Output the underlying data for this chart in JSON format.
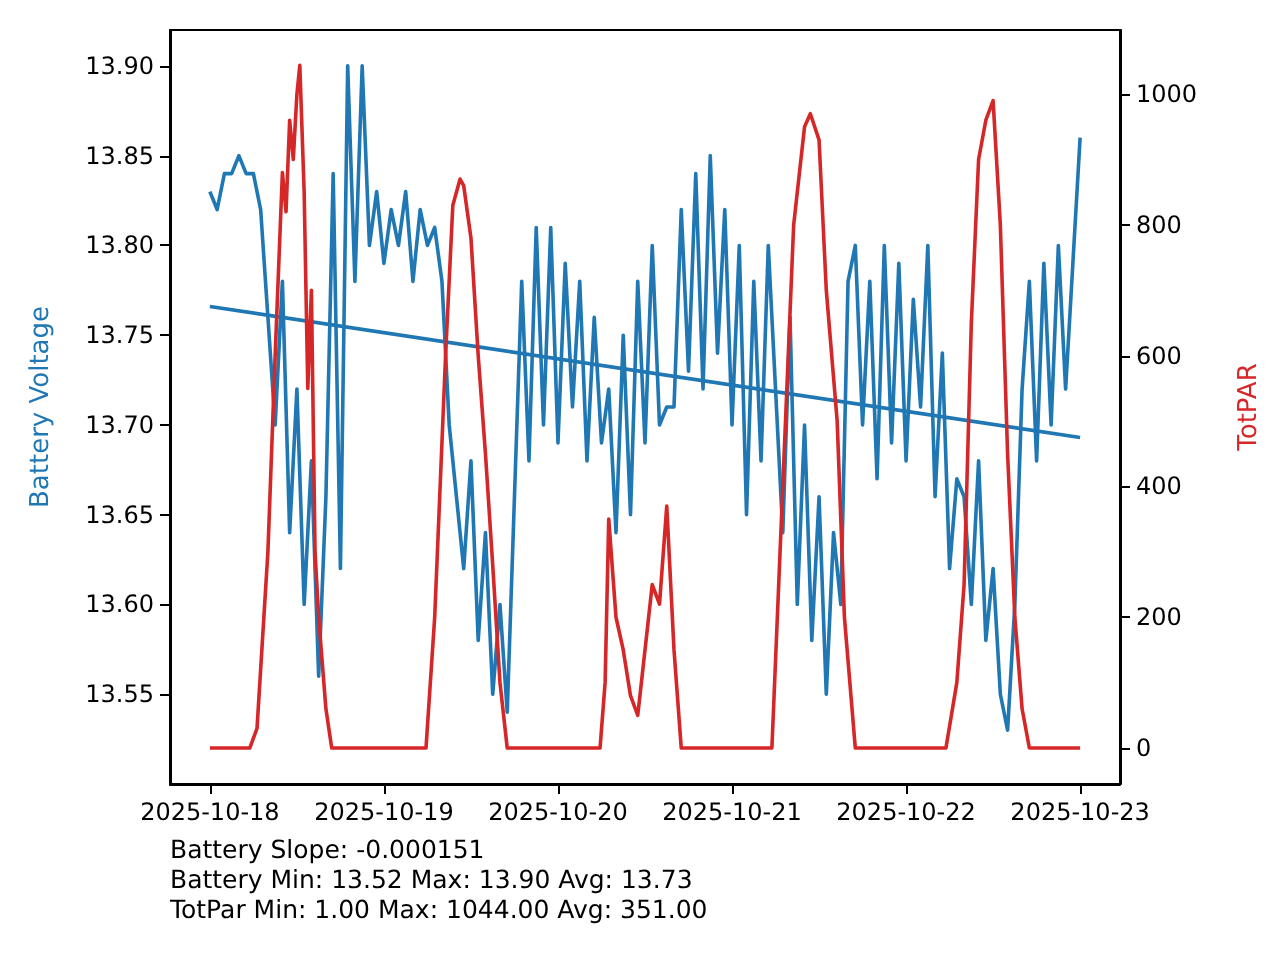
{
  "chart_data": {
    "type": "line",
    "ylabel": "Battery Voltage",
    "y2label": "TotPAR",
    "xlim": [
      "2025-10-17T18:30",
      "2025-10-23T05:30"
    ],
    "xticks": [
      "2025-10-18",
      "2025-10-19",
      "2025-10-20",
      "2025-10-21",
      "2025-10-22",
      "2025-10-23"
    ],
    "ylim": [
      13.5,
      13.92
    ],
    "yticks": [
      13.55,
      {
        "value": 13.6,
        "label": "13.60"
      },
      13.65,
      {
        "value": 13.7,
        "label": "13.70"
      },
      13.75,
      {
        "value": 13.8,
        "label": "13.80"
      },
      13.85,
      {
        "value": 13.9,
        "label": "13.90"
      }
    ],
    "y2lim": [
      -55,
      1098
    ],
    "y2ticks": [
      0,
      200,
      400,
      600,
      800,
      1000
    ],
    "grid": false,
    "marker": "none",
    "line_style": "solid",
    "annotations": [
      "Battery Slope: -0.000151",
      "Battery Min: 13.52 Max: 13.90 Avg: 13.73",
      "TotPar Min: 1.00 Max: 1044.00 Avg: 351.00"
    ],
    "series": [
      {
        "color": "#1f77b4",
        "x": [
          "2025-10-18T00:00",
          "2025-10-18T01:00",
          "2025-10-18T02:00",
          "2025-10-18T03:00",
          "2025-10-18T04:00",
          "2025-10-18T05:00",
          "2025-10-18T06:00",
          "2025-10-18T07:00",
          "2025-10-18T08:00",
          "2025-10-18T09:00",
          "2025-10-18T10:00",
          "2025-10-18T11:00",
          "2025-10-18T12:00",
          "2025-10-18T13:00",
          "2025-10-18T14:00",
          "2025-10-18T15:00",
          "2025-10-18T16:00",
          "2025-10-18T17:00",
          "2025-10-18T18:00",
          "2025-10-18T19:00",
          "2025-10-18T20:00",
          "2025-10-18T21:00",
          "2025-10-18T22:00",
          "2025-10-18T23:00",
          "2025-10-19T00:00",
          "2025-10-19T01:00",
          "2025-10-19T02:00",
          "2025-10-19T03:00",
          "2025-10-19T04:00",
          "2025-10-19T05:00",
          "2025-10-19T06:00",
          "2025-10-19T07:00",
          "2025-10-19T08:00",
          "2025-10-19T09:00",
          "2025-10-19T10:00",
          "2025-10-19T11:00",
          "2025-10-19T12:00",
          "2025-10-19T13:00",
          "2025-10-19T14:00",
          "2025-10-19T15:00",
          "2025-10-19T16:00",
          "2025-10-19T17:00",
          "2025-10-19T18:00",
          "2025-10-19T19:00",
          "2025-10-19T20:00",
          "2025-10-19T21:00",
          "2025-10-19T22:00",
          "2025-10-19T23:00",
          "2025-10-20T00:00",
          "2025-10-20T01:00",
          "2025-10-20T02:00",
          "2025-10-20T03:00",
          "2025-10-20T04:00",
          "2025-10-20T05:00",
          "2025-10-20T06:00",
          "2025-10-20T07:00",
          "2025-10-20T08:00",
          "2025-10-20T09:00",
          "2025-10-20T10:00",
          "2025-10-20T11:00",
          "2025-10-20T12:00",
          "2025-10-20T13:00",
          "2025-10-20T14:00",
          "2025-10-20T15:00",
          "2025-10-20T16:00",
          "2025-10-20T17:00",
          "2025-10-20T18:00",
          "2025-10-20T19:00",
          "2025-10-20T20:00",
          "2025-10-20T21:00",
          "2025-10-20T22:00",
          "2025-10-20T23:00",
          "2025-10-21T00:00",
          "2025-10-21T01:00",
          "2025-10-21T02:00",
          "2025-10-21T03:00",
          "2025-10-21T04:00",
          "2025-10-21T05:00",
          "2025-10-21T06:00",
          "2025-10-21T07:00",
          "2025-10-21T08:00",
          "2025-10-21T09:00",
          "2025-10-21T10:00",
          "2025-10-21T11:00",
          "2025-10-21T12:00",
          "2025-10-21T13:00",
          "2025-10-21T14:00",
          "2025-10-21T15:00",
          "2025-10-21T16:00",
          "2025-10-21T17:00",
          "2025-10-21T18:00",
          "2025-10-21T19:00",
          "2025-10-21T20:00",
          "2025-10-21T21:00",
          "2025-10-21T22:00",
          "2025-10-21T23:00",
          "2025-10-22T00:00",
          "2025-10-22T01:00",
          "2025-10-22T02:00",
          "2025-10-22T03:00",
          "2025-10-22T04:00",
          "2025-10-22T05:00",
          "2025-10-22T06:00",
          "2025-10-22T07:00",
          "2025-10-22T08:00",
          "2025-10-22T09:00",
          "2025-10-22T10:00",
          "2025-10-22T11:00",
          "2025-10-22T12:00",
          "2025-10-22T13:00",
          "2025-10-22T14:00",
          "2025-10-22T15:00",
          "2025-10-22T16:00",
          "2025-10-22T17:00",
          "2025-10-22T18:00",
          "2025-10-22T19:00",
          "2025-10-22T20:00",
          "2025-10-22T21:00",
          "2025-10-22T22:00",
          "2025-10-22T23:00",
          "2025-10-23T00:00"
        ],
        "values": [
          13.83,
          13.82,
          13.84,
          13.84,
          13.85,
          13.84,
          13.84,
          13.82,
          13.76,
          13.7,
          13.78,
          13.64,
          13.72,
          13.6,
          13.68,
          13.56,
          13.66,
          13.84,
          13.62,
          13.9,
          13.78,
          13.9,
          13.8,
          13.83,
          13.79,
          13.82,
          13.8,
          13.83,
          13.78,
          13.82,
          13.8,
          13.81,
          13.78,
          13.7,
          13.66,
          13.62,
          13.68,
          13.58,
          13.64,
          13.55,
          13.6,
          13.54,
          13.66,
          13.78,
          13.68,
          13.81,
          13.7,
          13.81,
          13.69,
          13.79,
          13.71,
          13.78,
          13.68,
          13.76,
          13.69,
          13.72,
          13.64,
          13.75,
          13.65,
          13.78,
          13.69,
          13.8,
          13.7,
          13.71,
          13.71,
          13.82,
          13.73,
          13.84,
          13.72,
          13.85,
          13.74,
          13.82,
          13.7,
          13.8,
          13.65,
          13.78,
          13.68,
          13.8,
          13.72,
          13.64,
          13.76,
          13.6,
          13.7,
          13.58,
          13.66,
          13.55,
          13.64,
          13.6,
          13.78,
          13.8,
          13.7,
          13.78,
          13.67,
          13.8,
          13.69,
          13.79,
          13.68,
          13.77,
          13.71,
          13.8,
          13.66,
          13.74,
          13.62,
          13.67,
          13.66,
          13.6,
          13.68,
          13.58,
          13.62,
          13.55,
          13.53,
          13.6,
          13.72,
          13.78,
          13.68,
          13.79,
          13.7,
          13.8,
          13.72,
          13.79,
          13.86
        ]
      },
      {
        "color": "#1f77b4",
        "x": [
          "2025-10-18T00:00",
          "2025-10-23T00:00"
        ],
        "values": [
          13.766,
          13.693
        ]
      },
      {
        "color": "#d62728",
        "axis": "y2",
        "x": [
          "2025-10-18T00:00",
          "2025-10-18T05:30",
          "2025-10-18T06:30",
          "2025-10-18T08:00",
          "2025-10-18T09:00",
          "2025-10-18T10:00",
          "2025-10-18T10:30",
          "2025-10-18T11:00",
          "2025-10-18T11:30",
          "2025-10-18T12:00",
          "2025-10-18T12:24",
          "2025-10-18T13:00",
          "2025-10-18T13:30",
          "2025-10-18T14:00",
          "2025-10-18T14:30",
          "2025-10-18T15:00",
          "2025-10-18T16:00",
          "2025-10-18T16:48",
          "2025-10-19T05:48",
          "2025-10-19T07:00",
          "2025-10-19T08:30",
          "2025-10-19T09:30",
          "2025-10-19T10:30",
          "2025-10-19T11:00",
          "2025-10-19T12:00",
          "2025-10-19T13:00",
          "2025-10-19T14:00",
          "2025-10-19T15:00",
          "2025-10-19T16:00",
          "2025-10-19T17:00",
          "2025-10-20T05:48",
          "2025-10-20T06:30",
          "2025-10-20T07:00",
          "2025-10-20T08:00",
          "2025-10-20T09:00",
          "2025-10-20T10:00",
          "2025-10-20T11:00",
          "2025-10-20T12:00",
          "2025-10-20T13:00",
          "2025-10-20T14:00",
          "2025-10-20T15:00",
          "2025-10-20T16:00",
          "2025-10-20T17:00",
          "2025-10-21T05:30",
          "2025-10-21T07:00",
          "2025-10-21T08:30",
          "2025-10-21T10:00",
          "2025-10-21T10:48",
          "2025-10-21T12:00",
          "2025-10-21T13:00",
          "2025-10-21T14:30",
          "2025-10-21T15:30",
          "2025-10-21T17:00",
          "2025-10-22T05:30",
          "2025-10-22T07:00",
          "2025-10-22T08:00",
          "2025-10-22T09:00",
          "2025-10-22T10:00",
          "2025-10-22T11:00",
          "2025-10-22T12:00",
          "2025-10-22T13:00",
          "2025-10-22T14:00",
          "2025-10-22T15:00",
          "2025-10-22T16:00",
          "2025-10-22T17:00",
          "2025-10-23T00:00"
        ],
        "values": [
          0,
          0,
          30,
          300,
          600,
          880,
          820,
          960,
          900,
          1000,
          1044,
          850,
          550,
          700,
          300,
          200,
          60,
          0,
          0,
          200,
          600,
          830,
          870,
          860,
          780,
          600,
          450,
          280,
          100,
          0,
          0,
          100,
          350,
          200,
          150,
          80,
          50,
          150,
          250,
          220,
          370,
          150,
          0,
          0,
          400,
          800,
          950,
          970,
          930,
          700,
          500,
          200,
          0,
          0,
          100,
          250,
          650,
          900,
          960,
          990,
          800,
          450,
          200,
          60,
          0,
          0
        ]
      }
    ]
  }
}
